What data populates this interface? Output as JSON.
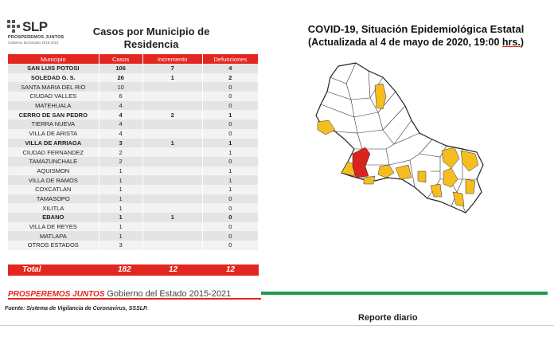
{
  "logo": {
    "name": "SLP",
    "tagline": "PROSPEREMOS JUNTOS",
    "subtitle": "Gobierno del Estado 2015-2021"
  },
  "table": {
    "title": "Casos por Municipio de Residencia",
    "headers": [
      "Municipio",
      "Casos",
      "Incremento",
      "Defunciones"
    ],
    "rows": [
      {
        "municipio": "SAN LUIS POTOSI",
        "casos": "106",
        "incremento": "7",
        "defunciones": "4",
        "bold": true
      },
      {
        "municipio": "SOLEDAD G. S.",
        "casos": "26",
        "incremento": "1",
        "defunciones": "2",
        "bold": true
      },
      {
        "municipio": "SANTA MARIA DEL RIO",
        "casos": "10",
        "incremento": "",
        "defunciones": "0",
        "bold": false
      },
      {
        "municipio": "CIUDAD VALLES",
        "casos": "6",
        "incremento": "",
        "defunciones": "0",
        "bold": false
      },
      {
        "municipio": "MATEHUALA",
        "casos": "4",
        "incremento": "",
        "defunciones": "0",
        "bold": false
      },
      {
        "municipio": "CERRO DE SAN PEDRO",
        "casos": "4",
        "incremento": "2",
        "defunciones": "1",
        "bold": true
      },
      {
        "municipio": "TIERRA NUEVA",
        "casos": "4",
        "incremento": "",
        "defunciones": "0",
        "bold": false
      },
      {
        "municipio": "VILLA DE ARISTA",
        "casos": "4",
        "incremento": "",
        "defunciones": "0",
        "bold": false
      },
      {
        "municipio": "VILLA DE ARRIAGA",
        "casos": "3",
        "incremento": "1",
        "defunciones": "1",
        "bold": true
      },
      {
        "municipio": "CIUDAD FERNANDEZ",
        "casos": "2",
        "incremento": "",
        "defunciones": "1",
        "bold": false
      },
      {
        "municipio": "TAMAZUNCHALE",
        "casos": "2",
        "incremento": "",
        "defunciones": "0",
        "bold": false
      },
      {
        "municipio": "AQUISMON",
        "casos": "1",
        "incremento": "",
        "defunciones": "1",
        "bold": false
      },
      {
        "municipio": "VILLA DE RAMOS",
        "casos": "1",
        "incremento": "",
        "defunciones": "1",
        "bold": false
      },
      {
        "municipio": "COXCATLAN",
        "casos": "1",
        "incremento": "",
        "defunciones": "1",
        "bold": false
      },
      {
        "municipio": "TAMASOPO",
        "casos": "1",
        "incremento": "",
        "defunciones": "0",
        "bold": false
      },
      {
        "municipio": "XILITLA",
        "casos": "1",
        "incremento": "",
        "defunciones": "0",
        "bold": false
      },
      {
        "municipio": "EBANO",
        "casos": "1",
        "incremento": "1",
        "defunciones": "0",
        "bold": true
      },
      {
        "municipio": "VILLA DE REYES",
        "casos": "1",
        "incremento": "",
        "defunciones": "0",
        "bold": false
      },
      {
        "municipio": "MATLAPA",
        "casos": "1",
        "incremento": "",
        "defunciones": "0",
        "bold": false
      },
      {
        "municipio": "OTROS ESTADOS",
        "casos": "3",
        "incremento": "",
        "defunciones": "0",
        "bold": false
      }
    ],
    "total": {
      "label": "Total",
      "casos": "182",
      "incremento": "12",
      "defunciones": "12"
    }
  },
  "header": {
    "title_line1": "COVID-19, Situación Epidemiológica Estatal",
    "title_line2_a": "(Actualizada al 4 de mayo de 2020, 19:00 ",
    "title_line2_b": "hrs.",
    "title_line2_c": ")"
  },
  "footer": {
    "brand": "PROSPEREMOS JUNTOS",
    "government": "Gobierno del Estado 2015-2021",
    "source": "Fuente: Sistema de Vigilancia de Coronavirus, SSSLP.",
    "report": "Reporte diario"
  },
  "colors": {
    "accent_red": "#e3261f",
    "accent_green": "#1e9a4a",
    "map_cases": "#f5bd1f",
    "map_highlight": "#d9231d"
  }
}
